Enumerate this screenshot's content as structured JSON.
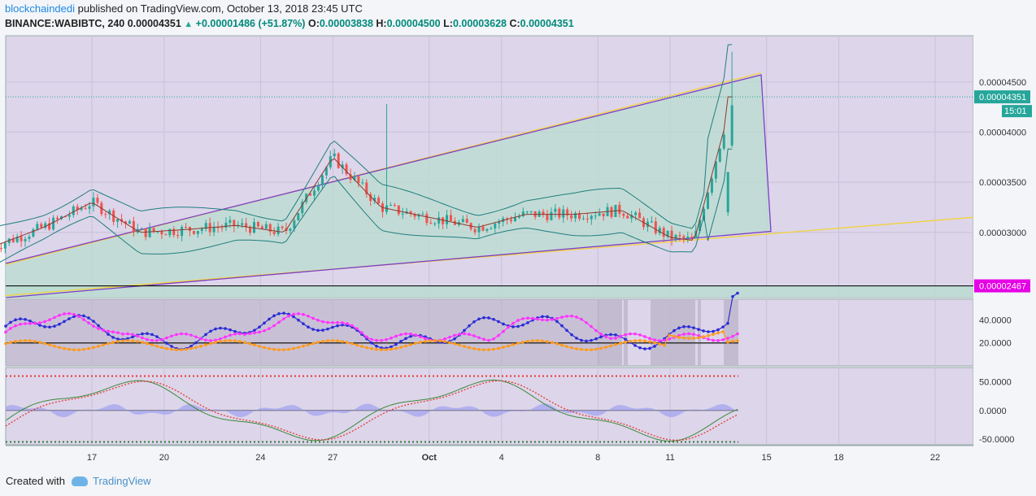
{
  "header": {
    "author": "blockchaindedi",
    "published_text": " published on TradingView.com, October 13, 2018 23:45 UTC",
    "symbol": "BINANCE:WABIBTC, 240",
    "last_price": "0.00004351",
    "change": "+0.00001486 (+51.87%)",
    "open_label": "O:",
    "open": "0.00003838",
    "high_label": "H:",
    "high": "0.00004500",
    "low_label": "L:",
    "low": "0.00003628",
    "close_label": "C:",
    "close": "0.00004351"
  },
  "footer": {
    "created_with": "Created with",
    "brand": "TradingView"
  },
  "colors": {
    "up": "#26a69a",
    "down": "#ef5350",
    "channel": "#7b3fc8",
    "trend": "#f2d33a",
    "bb": "#1f7f7f",
    "basis": "#8b3a2e",
    "panel_bg": "#ddd5ea",
    "price_label": "#26a69a",
    "support_label": "#e600e6"
  },
  "chart_data": [
    {
      "type": "candlestick",
      "title": "BINANCE:WABIBTC, 240",
      "x_tick_labels": [
        "17",
        "20",
        "24",
        "27",
        "Oct",
        "4",
        "8",
        "11",
        "15",
        "18",
        "22"
      ],
      "y_tick_labels": [
        "0.00004500",
        "0.00004000",
        "0.00003500",
        "0.00003000"
      ],
      "ylim": [
        2.35e-05,
        4.96e-05
      ],
      "current_price_label": "0.00004351",
      "countdown_label": "15:01",
      "support_level": 2.467e-05,
      "support_label": "0.00002467",
      "series": [
        {
          "name": "close",
          "x": [
            "Sep 13",
            "Sep 15",
            "Sep 17",
            "Sep 19",
            "Sep 21",
            "Sep 23",
            "Sep 25",
            "Sep 27",
            "Sep 29",
            "Oct 1",
            "Oct 3",
            "Oct 5",
            "Oct 7",
            "Oct 9",
            "Oct 11",
            "Oct 12",
            "Oct 13"
          ],
          "values": [
            2.85e-05,
            3.05e-05,
            3.3e-05,
            3e-05,
            3.03e-05,
            3.07e-05,
            3e-05,
            3.75e-05,
            3.25e-05,
            3.15e-05,
            3.05e-05,
            3.18e-05,
            3.18e-05,
            3.22e-05,
            2.95e-05,
            2.92e-05,
            4.351e-05
          ]
        }
      ],
      "annotations": [
        "ascending channel",
        "bollinger bands",
        "horizontal support line"
      ]
    },
    {
      "type": "line",
      "panel": "indicator-1",
      "y_tick_labels": [
        "40.0000",
        "20.0000"
      ],
      "ylim": [
        0,
        58
      ]
    },
    {
      "type": "line",
      "panel": "indicator-2",
      "y_tick_labels": [
        "50.0000",
        "0.0000",
        "-50.0000"
      ],
      "ylim": [
        -60,
        75
      ]
    }
  ]
}
